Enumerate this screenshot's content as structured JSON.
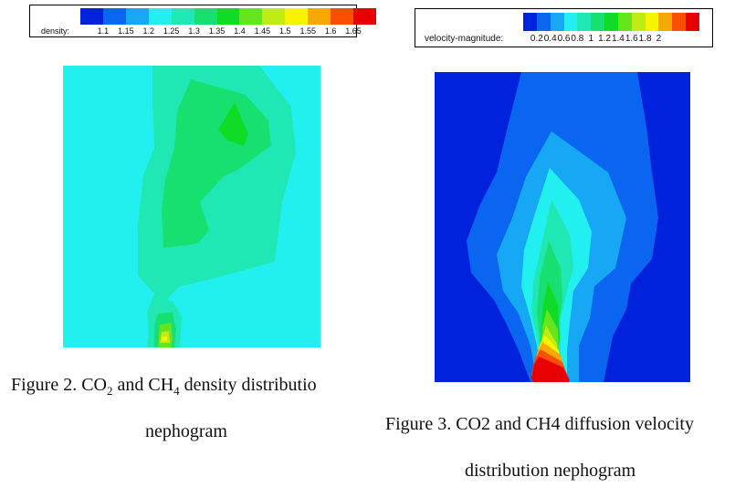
{
  "figure2": {
    "legend": {
      "title": "density:",
      "ticks": [
        "1.1",
        "1.15",
        "1.2",
        "1.25",
        "1.3",
        "1.35",
        "1.4",
        "1.45",
        "1.5",
        "1.55",
        "1.6",
        "1.65"
      ],
      "colors": [
        "#0022dd",
        "#0a66f0",
        "#16a8f5",
        "#22f0f0",
        "#20e8b4",
        "#18e070",
        "#10dc28",
        "#66e41c",
        "#c0ec14",
        "#f8f400",
        "#f8a800",
        "#f85000",
        "#e80000"
      ]
    },
    "caption_line1_pre": "Figure 2. CO",
    "sub_a": "2",
    "caption_line1_mid": " and CH",
    "sub_b": "4",
    "caption_line1_post": " density distributio",
    "caption_line2": "nephogram"
  },
  "figure3": {
    "legend": {
      "title": "velocity-magnitude:",
      "ticks": [
        "0.2",
        "0.4",
        "0.6",
        "0.8",
        "1",
        "1.2",
        "1.4",
        "1.6",
        "1.8",
        "2"
      ],
      "colors": [
        "#0022dd",
        "#0a66f0",
        "#16a8f5",
        "#22f0f0",
        "#20e8b4",
        "#18e070",
        "#10dc28",
        "#66e41c",
        "#c0ec14",
        "#f8f400",
        "#f8a800",
        "#f85000",
        "#e80000"
      ]
    },
    "caption_line1": "Figure 3. CO2 and CH4 diffusion velocity",
    "caption_line2": "distribution nephogram"
  }
}
